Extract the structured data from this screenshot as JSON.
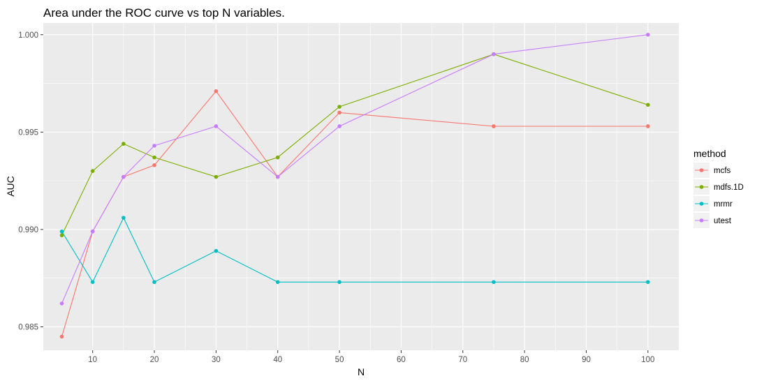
{
  "chart_data": {
    "type": "line",
    "title": "Area under the ROC curve vs top N variables.",
    "xlabel": "N",
    "ylabel": "AUC",
    "xlim": [
      2,
      105
    ],
    "ylim": [
      0.9838,
      1.0006
    ],
    "x_ticks": [
      10,
      20,
      30,
      40,
      50,
      60,
      70,
      80,
      90,
      100
    ],
    "y_ticks": [
      0.985,
      0.99,
      0.995,
      1.0
    ],
    "y_tick_labels": [
      "0.985",
      "0.990",
      "0.995",
      "1.000"
    ],
    "grid": true,
    "legend": {
      "title": "method",
      "position": "right"
    },
    "x": [
      5,
      10,
      15,
      20,
      30,
      40,
      50,
      75,
      100
    ],
    "series": [
      {
        "name": "mcfs",
        "color": "#F8766D",
        "values": [
          0.9845,
          0.9899,
          0.9927,
          0.9933,
          0.9971,
          0.9927,
          0.996,
          0.9953,
          0.9953
        ]
      },
      {
        "name": "mdfs.1D",
        "color": "#7CAE00",
        "values": [
          0.9897,
          0.993,
          0.9944,
          0.9937,
          0.9927,
          0.9937,
          0.9963,
          0.999,
          0.9964
        ]
      },
      {
        "name": "mrmr",
        "color": "#00BFC4",
        "values": [
          0.9899,
          0.9873,
          0.9906,
          0.9873,
          0.9889,
          0.9873,
          0.9873,
          0.9873,
          0.9873
        ]
      },
      {
        "name": "utest",
        "color": "#C77CFF",
        "values": [
          0.9862,
          0.9899,
          0.9927,
          0.9943,
          0.9953,
          0.9927,
          0.9953,
          0.999,
          1.0
        ]
      }
    ]
  }
}
